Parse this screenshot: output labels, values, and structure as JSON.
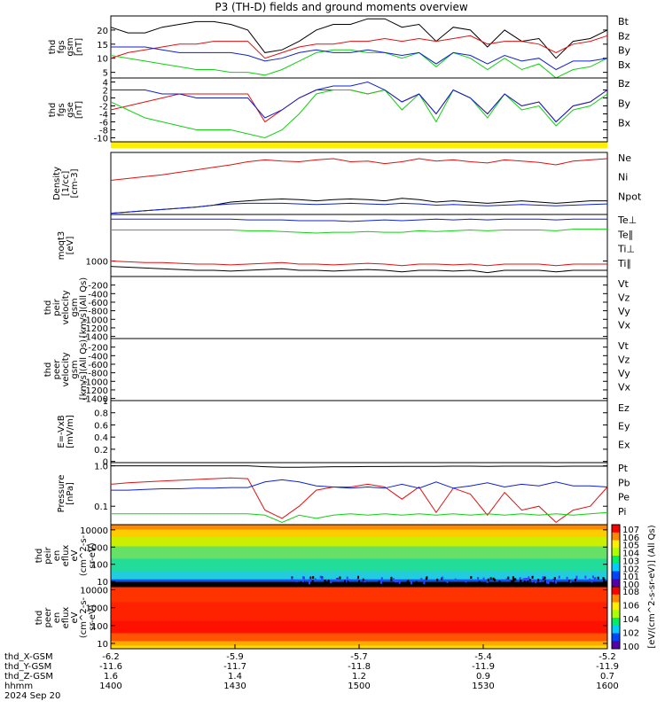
{
  "title": "P3 (TH-D) fields and ground moments overview",
  "colors": {
    "black": "#000000",
    "red": "#e01010",
    "green": "#10d010",
    "blue": "#1020d0",
    "yellow": "#ffee00"
  },
  "chart_data": [
    {
      "type": "line",
      "id": "p1",
      "ylabel_lines": [
        "thd",
        "fgs",
        "gsm",
        "[nT]"
      ],
      "ylim": [
        3,
        25
      ],
      "yticks": [
        5,
        10,
        15,
        20
      ],
      "series": [
        {
          "name": "Bt",
          "color": "#000000",
          "values": [
            21,
            19,
            19,
            21,
            22,
            23,
            23,
            22,
            20,
            12,
            13,
            16,
            20,
            22,
            22,
            24,
            24,
            21,
            22,
            16,
            21,
            20,
            14,
            20,
            16,
            17,
            10,
            16,
            17,
            20
          ]
        },
        {
          "name": "Bz",
          "color": "#e01010",
          "values": [
            10,
            12,
            13,
            14,
            15,
            15,
            16,
            16,
            16,
            10,
            12,
            14,
            15,
            15,
            16,
            16,
            17,
            16,
            17,
            16,
            17,
            18,
            15,
            16,
            16,
            15,
            12,
            15,
            16,
            18
          ]
        },
        {
          "name": "By",
          "color": "#10d010",
          "values": [
            11,
            10,
            9,
            8,
            7,
            6,
            6,
            5,
            5,
            4,
            6,
            9,
            12,
            13,
            13,
            12,
            12,
            10,
            12,
            7,
            12,
            10,
            6,
            10,
            6,
            8,
            2,
            6,
            7,
            10
          ]
        },
        {
          "name": "Bx",
          "color": "#1020d0",
          "values": [
            14,
            14,
            14,
            13,
            12,
            12,
            12,
            12,
            11,
            9,
            10,
            12,
            13,
            12,
            12,
            13,
            12,
            11,
            12,
            8,
            12,
            11,
            8,
            11,
            9,
            10,
            6,
            9,
            9,
            10
          ]
        }
      ]
    },
    {
      "type": "line",
      "id": "p2",
      "ylabel_lines": [
        "thd",
        "fgs",
        "gse",
        "[nT]"
      ],
      "ylim": [
        -11,
        5
      ],
      "yticks": [
        -10,
        -8,
        -6,
        -4,
        -2,
        0,
        2,
        4
      ],
      "series": [
        {
          "name": "Bz",
          "color": "#e01010",
          "values": [
            -3,
            -2,
            -1,
            0,
            1,
            1,
            1,
            1,
            1,
            -6,
            -3,
            0,
            2,
            2,
            2,
            1,
            2,
            -1,
            1,
            -4,
            2,
            0,
            -4,
            1,
            -2,
            -1,
            -6,
            -2,
            -1,
            2
          ]
        },
        {
          "name": "By",
          "color": "#10d010",
          "values": [
            -1,
            -3,
            -5,
            -6,
            -7,
            -8,
            -8,
            -8,
            -9,
            -10,
            -8,
            -4,
            1,
            2,
            2,
            1,
            2,
            -3,
            1,
            -6,
            2,
            0,
            -5,
            1,
            -3,
            -2,
            -7,
            -3,
            -2,
            1
          ]
        },
        {
          "name": "Bx",
          "color": "#1020d0",
          "values": [
            2,
            2,
            2,
            1,
            1,
            0,
            0,
            0,
            0,
            -5,
            -3,
            0,
            2,
            3,
            3,
            4,
            2,
            -1,
            1,
            -4,
            2,
            0,
            -4,
            1,
            -2,
            -1,
            -6,
            -2,
            -1,
            2
          ]
        }
      ]
    },
    {
      "type": "line",
      "id": "p3",
      "ylabel_lines": [
        "Density",
        "[1/cc]",
        "[cm-3]"
      ],
      "ylim": [
        0,
        1
      ],
      "yticks": [],
      "series": [
        {
          "name": "Ne",
          "color": "#e01010",
          "values": [
            0.55,
            0.58,
            0.61,
            0.64,
            0.68,
            0.72,
            0.76,
            0.8,
            0.85,
            0.88,
            0.86,
            0.85,
            0.88,
            0.9,
            0.85,
            0.86,
            0.82,
            0.85,
            0.9,
            0.86,
            0.88,
            0.85,
            0.83,
            0.88,
            0.86,
            0.84,
            0.8,
            0.86,
            0.88,
            0.9
          ]
        },
        {
          "name": "Ni",
          "color": "#000000",
          "values": [
            0.02,
            0.04,
            0.06,
            0.08,
            0.1,
            0.12,
            0.15,
            0.2,
            0.22,
            0.24,
            0.25,
            0.24,
            0.22,
            0.24,
            0.25,
            0.24,
            0.22,
            0.26,
            0.24,
            0.2,
            0.22,
            0.2,
            0.18,
            0.2,
            0.22,
            0.2,
            0.18,
            0.2,
            0.22,
            0.22
          ]
        },
        {
          "name": "Npot",
          "color": "#1020d0",
          "values": [
            0.02,
            0.04,
            0.06,
            0.08,
            0.1,
            0.12,
            0.15,
            0.17,
            0.18,
            0.18,
            0.18,
            0.17,
            0.16,
            0.17,
            0.18,
            0.17,
            0.16,
            0.18,
            0.17,
            0.15,
            0.16,
            0.15,
            0.14,
            0.15,
            0.16,
            0.15,
            0.14,
            0.15,
            0.16,
            0.17
          ]
        }
      ]
    },
    {
      "type": "line",
      "id": "p4",
      "ylabel_lines": [
        "moqt3",
        "[eV]"
      ],
      "ylim": [
        0,
        4000
      ],
      "yticks": [
        1000
      ],
      "series": [
        {
          "name": "Te⊥",
          "color": "#e01010",
          "values": [
            1000,
            950,
            900,
            900,
            850,
            800,
            800,
            750,
            800,
            850,
            900,
            800,
            800,
            750,
            800,
            850,
            800,
            700,
            800,
            800,
            750,
            800,
            700,
            800,
            800,
            800,
            700,
            800,
            800,
            800
          ]
        },
        {
          "name": "Te∥",
          "color": "#000000",
          "values": [
            650,
            600,
            550,
            500,
            450,
            400,
            400,
            350,
            400,
            450,
            500,
            400,
            400,
            350,
            400,
            450,
            400,
            300,
            400,
            400,
            350,
            400,
            250,
            400,
            400,
            400,
            300,
            400,
            400,
            400
          ]
        },
        {
          "name": "Ti⊥",
          "color": "#1020d0",
          "values": [
            3700,
            3700,
            3700,
            3700,
            3700,
            3700,
            3700,
            3700,
            3650,
            3650,
            3650,
            3600,
            3600,
            3600,
            3550,
            3600,
            3650,
            3600,
            3650,
            3700,
            3650,
            3700,
            3650,
            3700,
            3700,
            3700,
            3650,
            3700,
            3700,
            3700
          ]
        },
        {
          "name": "Ti∥",
          "color": "#10d010",
          "values": [
            3000,
            3000,
            3000,
            3000,
            3000,
            3000,
            3000,
            3000,
            2950,
            2950,
            2900,
            2850,
            2800,
            2850,
            2850,
            2900,
            2850,
            2850,
            2950,
            2900,
            2950,
            3000,
            2950,
            3000,
            3000,
            3000,
            2950,
            3050,
            3050,
            3050
          ]
        }
      ]
    },
    {
      "type": "line",
      "id": "p5",
      "ylabel_lines": [
        "thd",
        "peir",
        "velocity",
        "gsm",
        "[km/s](All Qs)"
      ],
      "ylim": [
        -1450,
        0
      ],
      "yticks": [
        -200,
        -400,
        -600,
        -800,
        -1000,
        -1200,
        -1400
      ],
      "legend": [
        "Vt",
        "Vz",
        "Vy",
        "Vx"
      ],
      "legend_colors": [
        "#000000",
        "#e01010",
        "#10d010",
        "#1020d0"
      ],
      "series": []
    },
    {
      "type": "line",
      "id": "p6",
      "ylabel_lines": [
        "thd",
        "peer",
        "velocity",
        "gsm",
        "[km/s](All Qs)"
      ],
      "ylim": [
        -1450,
        0
      ],
      "yticks": [
        -200,
        -400,
        -600,
        -800,
        -1000,
        -1200,
        -1400
      ],
      "legend": [
        "Vt",
        "Vz",
        "Vy",
        "Vx"
      ],
      "legend_colors": [
        "#000000",
        "#e01010",
        "#10d010",
        "#1020d0"
      ],
      "series": []
    },
    {
      "type": "line",
      "id": "p7",
      "ylabel_lines": [
        "E=-VxB",
        "[mV/m]"
      ],
      "ylim": [
        -0.02,
        1.0
      ],
      "yticks": [
        0.0,
        0.2,
        0.4,
        0.6,
        0.8,
        1.0
      ],
      "legend": [
        "Ez",
        "Ey",
        "Ex"
      ],
      "legend_colors": [
        "#e01010",
        "#10d010",
        "#1020d0"
      ],
      "series": []
    },
    {
      "type": "line",
      "id": "p8",
      "scale": "log",
      "ylabel_lines": [
        "Pressure",
        "[nPa]"
      ],
      "ylim": [
        0.035,
        1.2
      ],
      "yticks": [
        0.1,
        1.0
      ],
      "ytick_labels": [
        "0.1",
        "1.0"
      ],
      "series": [
        {
          "name": "Pt",
          "color": "#000000",
          "values": [
            1.0,
            1.0,
            1.0,
            1.0,
            1.0,
            1.0,
            1.0,
            1.0,
            1.0,
            0.95,
            0.92,
            0.92,
            0.93,
            0.95,
            0.95,
            0.96,
            0.96,
            0.97,
            0.97,
            0.97,
            0.98,
            0.98,
            0.97,
            0.98,
            0.98,
            0.98,
            0.97,
            0.98,
            0.98,
            0.98
          ]
        },
        {
          "name": "Pb",
          "color": "#e01010",
          "values": [
            0.35,
            0.38,
            0.4,
            0.42,
            0.44,
            0.46,
            0.48,
            0.5,
            0.48,
            0.08,
            0.05,
            0.1,
            0.25,
            0.3,
            0.3,
            0.35,
            0.3,
            0.15,
            0.3,
            0.07,
            0.28,
            0.2,
            0.06,
            0.22,
            0.08,
            0.1,
            0.04,
            0.08,
            0.1,
            0.3
          ]
        },
        {
          "name": "Pe",
          "color": "#10d010",
          "values": [
            0.065,
            0.065,
            0.065,
            0.065,
            0.065,
            0.065,
            0.065,
            0.065,
            0.065,
            0.06,
            0.04,
            0.06,
            0.05,
            0.06,
            0.065,
            0.06,
            0.065,
            0.06,
            0.065,
            0.06,
            0.065,
            0.06,
            0.065,
            0.06,
            0.065,
            0.06,
            0.065,
            0.06,
            0.065,
            0.07
          ]
        },
        {
          "name": "Pi",
          "color": "#1020d0",
          "values": [
            0.25,
            0.25,
            0.26,
            0.27,
            0.27,
            0.28,
            0.28,
            0.29,
            0.29,
            0.4,
            0.45,
            0.4,
            0.32,
            0.3,
            0.28,
            0.3,
            0.28,
            0.35,
            0.28,
            0.4,
            0.28,
            0.32,
            0.38,
            0.3,
            0.35,
            0.32,
            0.4,
            0.32,
            0.32,
            0.3
          ]
        }
      ]
    },
    {
      "type": "heatmap",
      "id": "p9",
      "ylabel_lines": [
        "thd",
        "peir",
        "en",
        "eflux",
        "eV",
        "(cm^2-s-",
        "sr-eV)"
      ],
      "ylim": [
        5,
        20000
      ],
      "scale": "log",
      "yticks": [
        10,
        100,
        1000,
        10000
      ],
      "ytick_labels": [
        "10",
        "100",
        "1000",
        "10000"
      ]
    },
    {
      "type": "heatmap",
      "id": "p10",
      "ylabel_lines": [
        "thd",
        "peer",
        "en",
        "eflux",
        "eV",
        "(cm^2-s-",
        "sr-eV)"
      ],
      "ylim": [
        5,
        15000
      ],
      "scale": "log",
      "yticks": [
        10,
        100,
        1000,
        10000
      ],
      "ytick_labels": [
        "10",
        "100",
        "1000",
        "10000"
      ]
    }
  ],
  "colorbars": [
    {
      "id": "cb1",
      "labels": [
        "10^7",
        "10^6",
        "10^5",
        "10^4",
        "10^3",
        "10^2",
        "10^1",
        "10^0"
      ]
    },
    {
      "id": "cb2",
      "labels": [
        "10^8",
        "10^6",
        "10^4",
        "10^2",
        "10^0"
      ]
    }
  ],
  "colorbar_label": "[eV/(cm^2-s-sr-eV)] (All Qs)",
  "xaxis": {
    "rows": [
      {
        "label": "thd_X-GSM",
        "values": [
          "-6.2",
          "-5.9",
          "-5.7",
          "-5.4",
          "-5.2"
        ]
      },
      {
        "label": "thd_Y-GSM",
        "values": [
          "-11.6",
          "-11.7",
          "-11.8",
          "-11.9",
          "-11.9"
        ]
      },
      {
        "label": "thd_Z-GSM",
        "values": [
          "1.6",
          "1.4",
          "1.2",
          "0.9",
          "0.7"
        ]
      },
      {
        "label": "hhmm",
        "values": [
          "1400",
          "1430",
          "1500",
          "1530",
          "1600"
        ]
      }
    ],
    "date": "2024 Sep 20"
  }
}
